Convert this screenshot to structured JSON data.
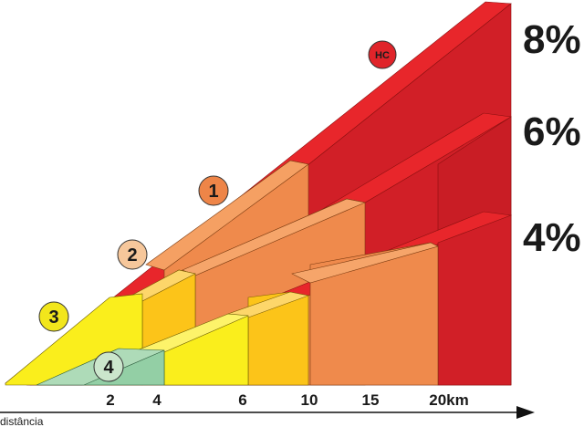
{
  "grades": [
    "8%",
    "6%",
    "4%"
  ],
  "distance_ticks": [
    "2",
    "4",
    "6",
    "10",
    "15",
    "20km"
  ],
  "axis_label": "distância",
  "categories": [
    {
      "label": "HC",
      "color": "#e0242a"
    },
    {
      "label": "1",
      "color": "#ee8548"
    },
    {
      "label": "2",
      "color": "#f6c79b"
    },
    {
      "label": "3",
      "color": "#f2e61c"
    },
    {
      "label": "4",
      "color": "#cbe6cc"
    }
  ],
  "colors": {
    "hc": "#e31e24",
    "hc_dark": "#c41a22",
    "cat1": "#f08a4b",
    "cat2": "#fcc419",
    "cat3": "#faee1c",
    "cat4": "#93cfa5",
    "stroke": "#5a4a00"
  }
}
